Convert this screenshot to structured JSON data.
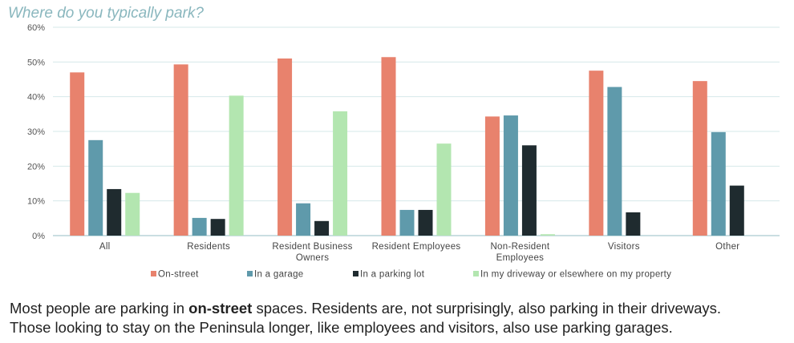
{
  "chart_data": {
    "type": "bar",
    "title": "Where do you typically park?",
    "categories": [
      [
        "All"
      ],
      [
        "Residents"
      ],
      [
        "Resident Business",
        "Owners"
      ],
      [
        "Resident Employees"
      ],
      [
        "Non-Resident",
        "Employees"
      ],
      [
        "Visitors"
      ],
      [
        "Other"
      ]
    ],
    "series": [
      {
        "name": "On-street",
        "color": "#e8826d",
        "values": [
          47,
          49.3,
          51,
          51.4,
          34.3,
          47.5,
          44.5
        ]
      },
      {
        "name": "In a garage",
        "color": "#5f9aab",
        "values": [
          27.5,
          5.1,
          9.3,
          7.4,
          34.6,
          42.8,
          29.8
        ]
      },
      {
        "name": "In a parking lot",
        "color": "#1f2b2f",
        "values": [
          13.4,
          4.8,
          4.2,
          7.4,
          26,
          6.7,
          14.4
        ]
      },
      {
        "name": "In my driveway or elsewhere on my property",
        "color": "#b3e6b0",
        "values": [
          12.3,
          40.3,
          35.8,
          26.5,
          0.4,
          null,
          null
        ]
      }
    ],
    "ylim": [
      0,
      60
    ],
    "yticks": [
      "0%",
      "10%",
      "20%",
      "30%",
      "40%",
      "50%",
      "60%"
    ],
    "ytick_values": [
      0,
      10,
      20,
      30,
      40,
      50,
      60
    ],
    "grid": true,
    "legend_position": "bottom"
  },
  "caption": {
    "line1_pre": "Most people are parking in ",
    "line1_bold": "on-street",
    "line1_post": " spaces. Residents are, not surprisingly, also parking in their driveways.",
    "line2": "Those looking to stay on the Peninsula longer, like employees and visitors, also use parking garages."
  }
}
